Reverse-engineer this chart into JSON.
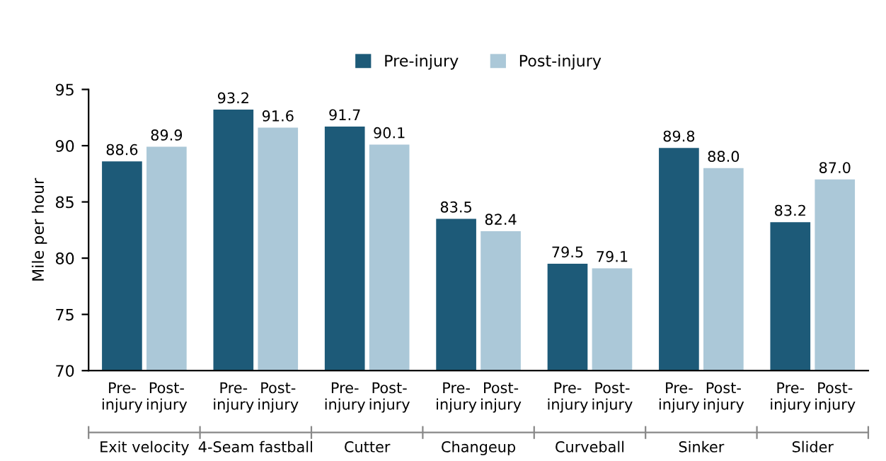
{
  "chart_data": {
    "type": "bar",
    "ylabel": "Mile per hour",
    "categories": [
      "Exit velocity",
      "4-Seam fastball",
      "Cutter",
      "Changeup",
      "Curveball",
      "Sinker",
      "Slider"
    ],
    "series": [
      {
        "name": "Pre-injury",
        "color": "#1d5a78",
        "values": [
          88.6,
          93.2,
          91.7,
          83.5,
          79.5,
          89.8,
          83.2
        ],
        "value_labels": [
          "88.6",
          "93.2",
          "91.7",
          "83.5",
          "79.5",
          "89.8",
          "83.2"
        ]
      },
      {
        "name": "Post-injury",
        "color": "#abc8d8",
        "values": [
          89.9,
          91.6,
          90.1,
          82.4,
          79.1,
          88.0,
          87.0
        ],
        "value_labels": [
          "89.9",
          "91.6",
          "90.1",
          "82.4",
          "79.1",
          "88.0",
          "87.0"
        ]
      }
    ],
    "ylim": [
      70,
      95
    ],
    "yticks": [
      70,
      75,
      80,
      85,
      90,
      95
    ],
    "grid": false,
    "legend": "top"
  }
}
